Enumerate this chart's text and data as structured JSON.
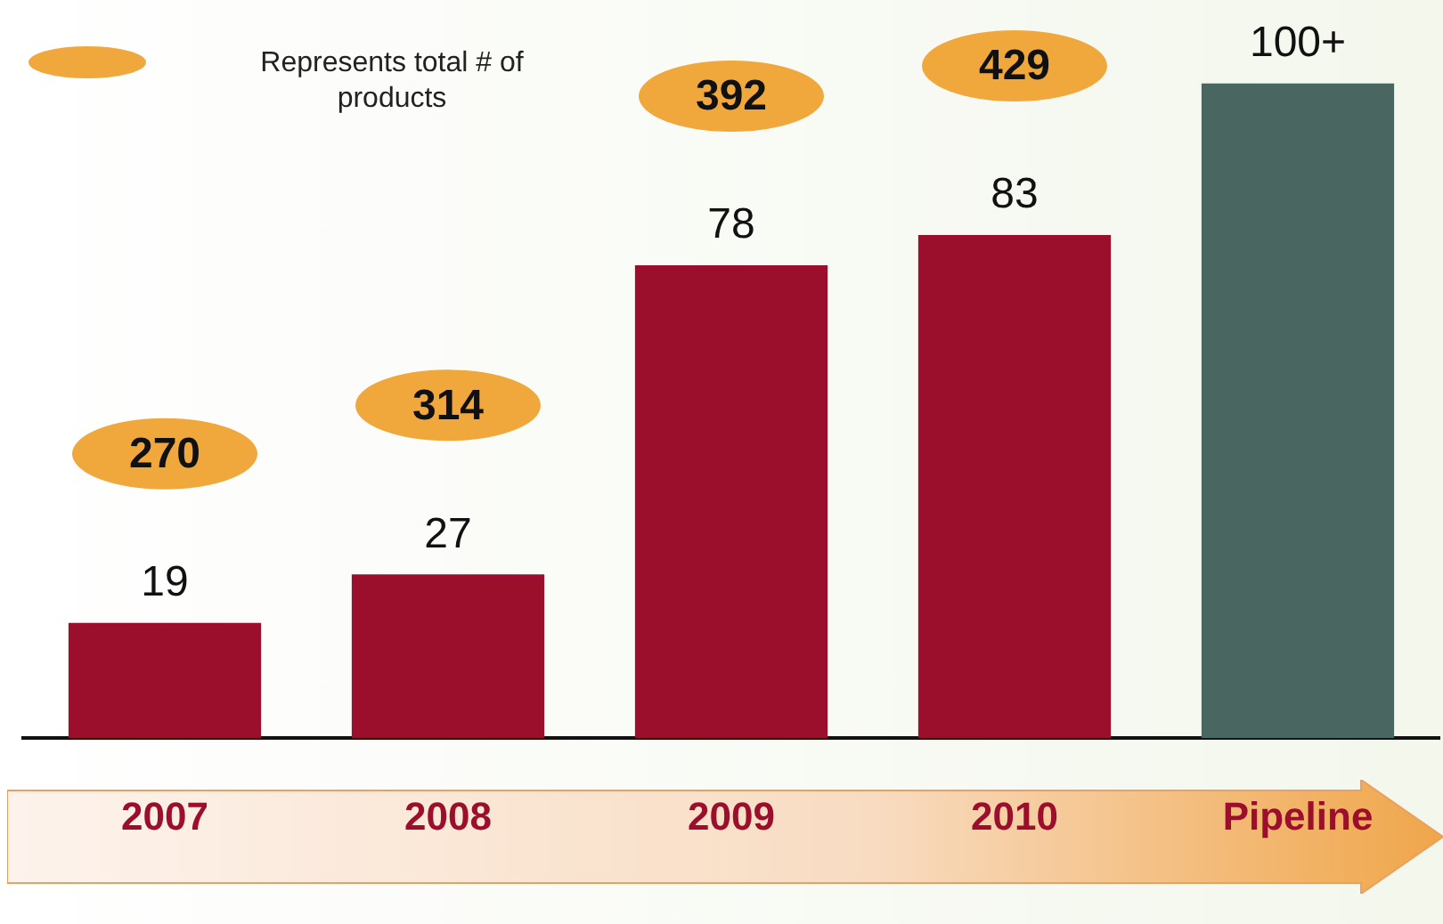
{
  "chart_data": {
    "type": "bar",
    "categories": [
      "2007",
      "2008",
      "2009",
      "2010",
      "Pipeline"
    ],
    "values": [
      19,
      27,
      78,
      83,
      108
    ],
    "value_labels": [
      "19",
      "27",
      "78",
      "83",
      "100+"
    ],
    "colors": [
      "#9b0e2c",
      "#9b0e2c",
      "#9b0e2c",
      "#9b0e2c",
      "#4a6660"
    ],
    "annotations": [
      "270",
      "314",
      "392",
      "429",
      "Represents total # of products"
    ],
    "grid": false,
    "legend": false
  }
}
